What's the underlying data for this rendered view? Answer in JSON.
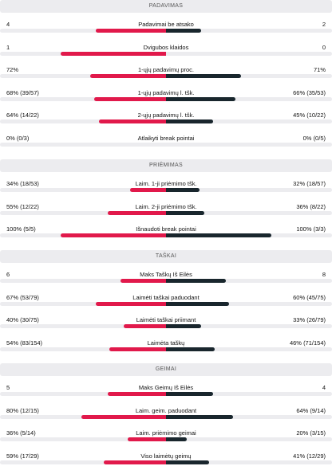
{
  "colors": {
    "home": "#e1194b",
    "away": "#19262d",
    "track": "#ececef",
    "header_bg": "#ececef"
  },
  "sections": [
    {
      "title": "PADAVIMAS",
      "rows": [
        {
          "label": "Padavimai be atsako",
          "left": "4",
          "right": "2",
          "home_share": 0.6667,
          "away_share": 0.3333
        },
        {
          "label": "Dvigubos klaidos",
          "left": "1",
          "right": "0",
          "home_share": 1.0,
          "away_share": 0.0
        },
        {
          "label": "1-ųjų padavimų proc.",
          "left": "72%",
          "right": "71%",
          "home_share": 0.72,
          "away_share": 0.71
        },
        {
          "label": "1-ųjų padavimų l. tšk.",
          "left": "68% (39/57)",
          "right": "66% (35/53)",
          "home_share": 0.68,
          "away_share": 0.66
        },
        {
          "label": "2-ųjų padavimų l. tšk.",
          "left": "64% (14/22)",
          "right": "45% (10/22)",
          "home_share": 0.64,
          "away_share": 0.45
        },
        {
          "label": "Atlaikyti break pointai",
          "left": "0% (0/3)",
          "right": "0% (0/5)",
          "home_share": 0.0,
          "away_share": 0.0
        }
      ]
    },
    {
      "title": "PRIĖMIMAS",
      "rows": [
        {
          "label": "Laim. 1-ji priėmimo tšk.",
          "left": "34% (18/53)",
          "right": "32% (18/57)",
          "home_share": 0.34,
          "away_share": 0.32
        },
        {
          "label": "Laim. 2-ji priėmimo tšk.",
          "left": "55% (12/22)",
          "right": "36% (8/22)",
          "home_share": 0.55,
          "away_share": 0.36
        },
        {
          "label": "Išnaudoti break pointai",
          "left": "100% (5/5)",
          "right": "100% (3/3)",
          "home_share": 1.0,
          "away_share": 1.0
        }
      ]
    },
    {
      "title": "TAŠKAI",
      "rows": [
        {
          "label": "Maks Taškų Iš Eilės",
          "left": "6",
          "right": "8",
          "home_share": 0.4286,
          "away_share": 0.5714
        },
        {
          "label": "Laimėti taškai paduodant",
          "left": "67% (53/79)",
          "right": "60% (45/75)",
          "home_share": 0.67,
          "away_share": 0.6
        },
        {
          "label": "Laimėti taškai priimant",
          "left": "40% (30/75)",
          "right": "33% (26/79)",
          "home_share": 0.4,
          "away_share": 0.33
        },
        {
          "label": "Laimėta taškų",
          "left": "54% (83/154)",
          "right": "46% (71/154)",
          "home_share": 0.54,
          "away_share": 0.46
        }
      ]
    },
    {
      "title": "GEIMAI",
      "rows": [
        {
          "label": "Maks Geimų Iš Eilės",
          "left": "5",
          "right": "4",
          "home_share": 0.5556,
          "away_share": 0.4444
        },
        {
          "label": "Laim. geim. paduodant",
          "left": "80% (12/15)",
          "right": "64% (9/14)",
          "home_share": 0.8,
          "away_share": 0.64
        },
        {
          "label": "Laim. priėmimo geimai",
          "left": "36% (5/14)",
          "right": "20% (3/15)",
          "home_share": 0.36,
          "away_share": 0.2
        },
        {
          "label": "Viso laimėtų geimų",
          "left": "59% (17/29)",
          "right": "41% (12/29)",
          "home_share": 0.59,
          "away_share": 0.41
        }
      ]
    }
  ]
}
